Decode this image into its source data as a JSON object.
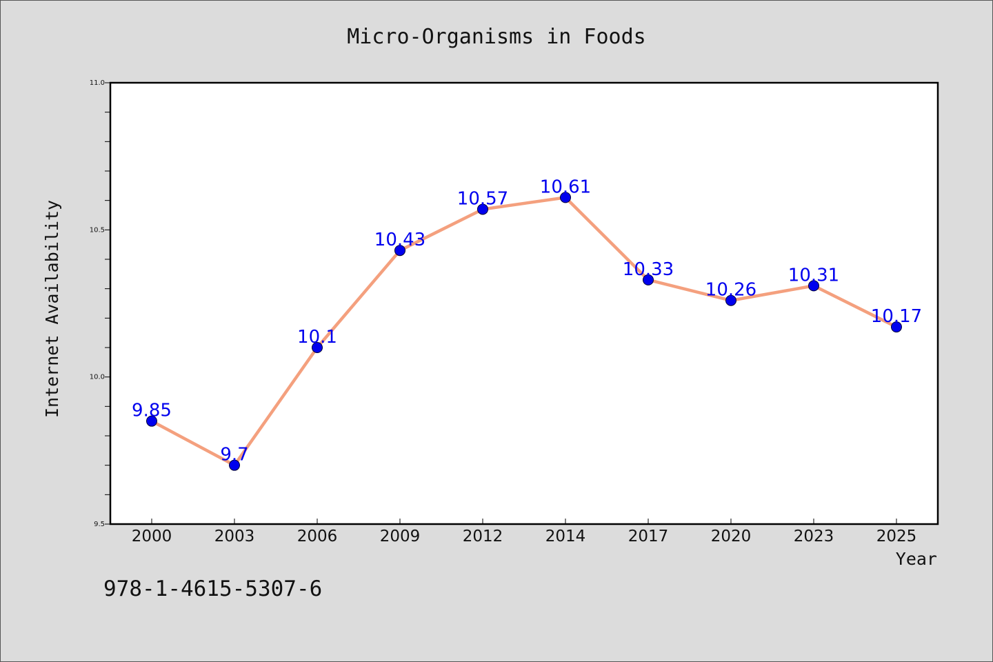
{
  "chart_data": {
    "type": "line",
    "title": "Micro-Organisms in Foods",
    "xlabel": "Year",
    "ylabel": "Internet Availability",
    "categories": [
      "2000",
      "2003",
      "2006",
      "2009",
      "2012",
      "2014",
      "2017",
      "2020",
      "2023",
      "2025"
    ],
    "series": [
      {
        "values": [
          9.85,
          9.7,
          10.1,
          10.43,
          10.57,
          10.61,
          10.33,
          10.26,
          10.31,
          10.17
        ],
        "labels": [
          "9.85",
          "9.7",
          "10.1",
          "10.43",
          "10.57",
          "10.61",
          "10.33",
          "10.26",
          "10.31",
          "10.17"
        ]
      }
    ],
    "ylim": [
      9.5,
      11.0
    ],
    "yticks": [
      "9.5",
      "10.0",
      "10.5",
      "11.0"
    ],
    "y_minor_step": 0.1,
    "grid": false,
    "colors": {
      "line": "#f4a07e",
      "marker": "#0000ee",
      "label": "#0000ee",
      "background": "#dcdcdc",
      "plot_background": "#ffffff"
    }
  },
  "footer": {
    "isbn": "978-1-4615-5307-6"
  }
}
